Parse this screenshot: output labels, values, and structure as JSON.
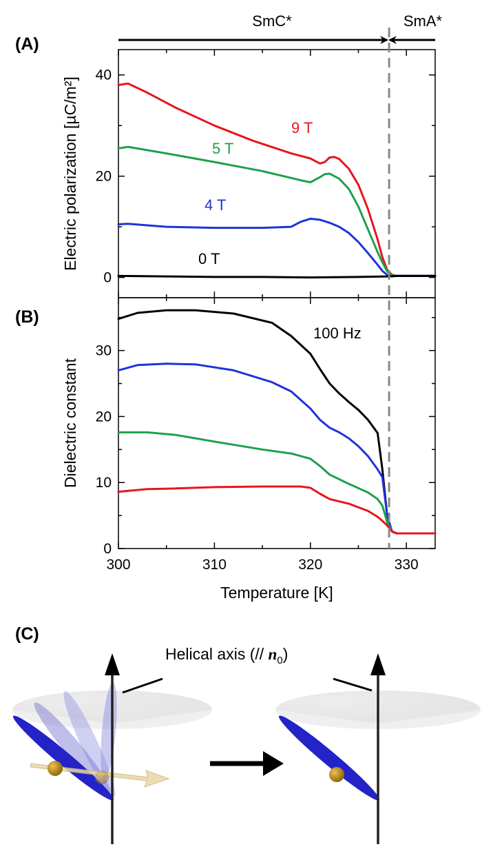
{
  "figure": {
    "panel_a_letter": "(A)",
    "panel_b_letter": "(B)",
    "panel_c_letter": "(C)",
    "phase_left": "SmC*",
    "phase_right": "SmA*",
    "helical_axis_label_prefix": "Helical axis (// ",
    "helical_axis_symbol": "n",
    "helical_axis_subscript": "0",
    "helical_axis_suffix": ")",
    "transition_temperature": 328.2,
    "colors": {
      "red": "#e8141c",
      "green": "#1da04c",
      "blue": "#1f33d8",
      "black": "#000000",
      "dashed_line": "#888888",
      "ellipse": "#2323c8",
      "cone": "#dadada",
      "particle": "#b8860b",
      "arrow_tan": "#e8d7a6"
    },
    "icons": [
      "helical-axis-arrow",
      "cone",
      "molecule-ellipse",
      "transition-arrow"
    ]
  },
  "chart_data": [
    {
      "type": "line",
      "panel": "A",
      "xlabel": "Temperature [K]",
      "ylabel": "Electric polarization [µC/m²]",
      "xlim": [
        300,
        333
      ],
      "ylim": [
        -4,
        45
      ],
      "yticks": [
        0,
        20,
        40
      ],
      "xticks": [
        300,
        310,
        320,
        330
      ],
      "series": [
        {
          "name": "9 T",
          "color": "#e8141c",
          "x": [
            300,
            301,
            303,
            306,
            310,
            314,
            318,
            320,
            321,
            321.5,
            322,
            322.5,
            323,
            324,
            325,
            326,
            327,
            327.5,
            328,
            328.5,
            329,
            333
          ],
          "y": [
            38,
            38.3,
            36.5,
            33.5,
            30,
            27,
            24.5,
            23.5,
            22.5,
            22.8,
            23.7,
            23.8,
            23.4,
            21.5,
            18.3,
            13.5,
            7.5,
            4,
            1.5,
            0.5,
            0.3,
            0.3
          ]
        },
        {
          "name": "5 T",
          "color": "#1da04c",
          "x": [
            300,
            301,
            305,
            310,
            315,
            319,
            320,
            321,
            321.5,
            322,
            323,
            324,
            325,
            326,
            327,
            327.5,
            328,
            328.5,
            329,
            333
          ],
          "y": [
            25.5,
            25.8,
            24.5,
            22.8,
            21,
            19.2,
            18.8,
            19.8,
            20.4,
            20.5,
            19.5,
            17.5,
            14,
            9.5,
            5,
            3,
            1.2,
            0.4,
            0.3,
            0.3
          ]
        },
        {
          "name": "4 T",
          "color": "#1f33d8",
          "x": [
            300,
            301,
            305,
            310,
            315,
            318,
            319,
            320,
            321,
            322,
            323,
            324,
            325,
            326,
            327,
            327.5,
            328,
            328.5,
            329,
            333
          ],
          "y": [
            10.5,
            10.6,
            10,
            9.8,
            9.8,
            10,
            11,
            11.6,
            11.4,
            10.8,
            10,
            8.8,
            7,
            4.8,
            2.5,
            1.3,
            0.5,
            0.2,
            0.3,
            0.3
          ]
        },
        {
          "name": "0 T",
          "color": "#000000",
          "x": [
            300,
            305,
            310,
            315,
            320,
            325,
            328,
            329,
            333
          ],
          "y": [
            0.3,
            0.2,
            0.1,
            0.1,
            0,
            0.1,
            0.2,
            0.3,
            0.3
          ]
        }
      ]
    },
    {
      "type": "line",
      "panel": "B",
      "xlabel": "Temperature [K]",
      "ylabel": "Dielectric constant",
      "xlim": [
        300,
        333
      ],
      "ylim": [
        0,
        38
      ],
      "yticks": [
        0,
        10,
        20,
        30
      ],
      "xticks": [
        300,
        310,
        320,
        330
      ],
      "annotation": "100 Hz",
      "series": [
        {
          "name": "",
          "color": "#000000",
          "x": [
            300,
            302,
            305,
            308,
            312,
            316,
            318,
            320,
            321,
            322,
            323,
            324,
            325,
            326,
            327,
            327.5,
            328,
            328.3,
            328.6,
            329,
            330,
            333
          ],
          "y": [
            34.8,
            35.7,
            36.1,
            36.1,
            35.6,
            34.2,
            32.2,
            29.5,
            27.2,
            25,
            23.5,
            22.2,
            21,
            19.5,
            17.5,
            12,
            5,
            3,
            2.5,
            2.3,
            2.3,
            2.3
          ]
        },
        {
          "name": "",
          "color": "#1f33d8",
          "x": [
            300,
            302,
            305,
            308,
            312,
            316,
            318,
            320,
            321,
            322,
            323,
            324,
            325,
            326,
            327,
            327.5,
            328,
            328.5,
            329,
            333
          ],
          "y": [
            27,
            27.8,
            28,
            27.9,
            27,
            25.2,
            23.8,
            21.2,
            19.5,
            18.3,
            17.6,
            16.7,
            15.5,
            14,
            12,
            10.8,
            5,
            2.6,
            2.3,
            2.3
          ]
        },
        {
          "name": "",
          "color": "#1da04c",
          "x": [
            300,
            303,
            306,
            310,
            315,
            318,
            320,
            321,
            322,
            324,
            326,
            327,
            327.5,
            328,
            328.5,
            329,
            333
          ],
          "y": [
            17.6,
            17.6,
            17.2,
            16.2,
            15,
            14.4,
            13.6,
            12.5,
            11.2,
            9.8,
            8.5,
            7.5,
            6.5,
            4,
            2.6,
            2.3,
            2.3
          ]
        },
        {
          "name": "",
          "color": "#e8141c",
          "x": [
            300,
            303,
            306,
            310,
            315,
            319,
            320,
            321,
            322,
            324,
            326,
            327,
            327.5,
            328,
            328.5,
            329,
            330,
            333
          ],
          "y": [
            8.6,
            9,
            9.1,
            9.3,
            9.4,
            9.4,
            9.2,
            8.3,
            7.5,
            6.8,
            5.7,
            4.8,
            4.2,
            3.5,
            2.6,
            2.3,
            2.3,
            2.3
          ]
        }
      ]
    }
  ]
}
